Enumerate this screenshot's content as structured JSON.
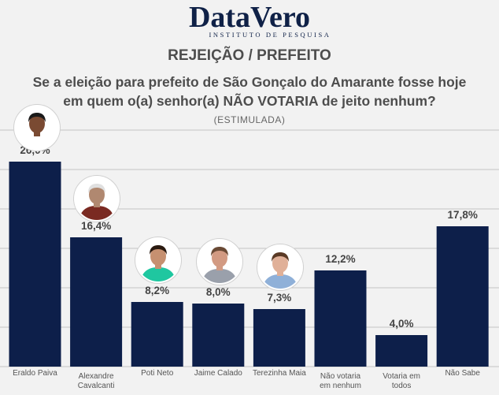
{
  "logo": {
    "main": "DataVero",
    "sub": "INSTITUTO DE PESQUISA"
  },
  "heading": "REJEIÇÃO / PREFEITO",
  "question_lines": [
    "Se a eleição para prefeito de São Gonçalo do Amarante fosse hoje",
    "em quem o(a) senhor(a) NÃO VOTARIA de jeito nenhum?"
  ],
  "survey_type": "(ESTIMULADA)",
  "colors": {
    "bar": "#0d1f4a",
    "grid": "#c4c4c4",
    "label": "#555555",
    "value": "#444444"
  },
  "chart_data": {
    "type": "bar",
    "categories": [
      [
        "Eraldo Paiva"
      ],
      [
        "Alexandre",
        "Cavalcanti"
      ],
      [
        "Poti Neto"
      ],
      [
        "Jaime Calado"
      ],
      [
        "Terezinha Maia"
      ],
      [
        "Não votaria",
        "em nenhum"
      ],
      [
        "Votaria em",
        "todos"
      ],
      [
        "Não Sabe"
      ]
    ],
    "values": [
      26.0,
      16.4,
      8.2,
      8.0,
      7.3,
      12.2,
      4.0,
      17.8
    ],
    "value_labels": [
      "26,0%",
      "16,4%",
      "8,2%",
      "8,0%",
      "7,3%",
      "12,2%",
      "4,0%",
      "17,8%"
    ],
    "ylim": [
      0,
      30
    ],
    "grid": true
  },
  "candidate_photos": [
    {
      "candidate": "Eraldo Paiva",
      "icon": "person-photo-icon",
      "skin": "#7a4a32",
      "hair": "#1a1a1a",
      "shirt": "#ffffff"
    },
    {
      "candidate": "Alexandre Cavalcanti",
      "icon": "person-photo-icon",
      "skin": "#b08870",
      "hair": "#e0e0e0",
      "shirt": "#7a2a22"
    },
    {
      "candidate": "Poti Neto",
      "icon": "person-photo-icon",
      "skin": "#c69070",
      "hair": "#2a1a10",
      "shirt": "#1fc7a0"
    },
    {
      "candidate": "Jaime Calado",
      "icon": "person-photo-icon",
      "skin": "#d29a82",
      "hair": "#6a4a35",
      "shirt": "#9aa0ab"
    },
    {
      "candidate": "Terezinha Maia",
      "icon": "person-photo-icon",
      "skin": "#e0b098",
      "hair": "#5a3a25",
      "shirt": "#8fb0d8"
    }
  ]
}
